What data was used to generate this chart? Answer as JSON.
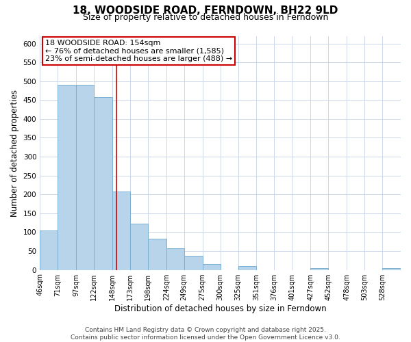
{
  "title": "18, WOODSIDE ROAD, FERNDOWN, BH22 9LD",
  "subtitle": "Size of property relative to detached houses in Ferndown",
  "xlabel": "Distribution of detached houses by size in Ferndown",
  "ylabel": "Number of detached properties",
  "footer_line1": "Contains HM Land Registry data © Crown copyright and database right 2025.",
  "footer_line2": "Contains public sector information licensed under the Open Government Licence v3.0.",
  "annotation_line1": "18 WOODSIDE ROAD: 154sqm",
  "annotation_line2": "← 76% of detached houses are smaller (1,585)",
  "annotation_line3": "23% of semi-detached houses are larger (488) →",
  "bin_edges": [
    46,
    71,
    97,
    122,
    148,
    173,
    198,
    224,
    249,
    275,
    300,
    325,
    351,
    376,
    401,
    427,
    452,
    478,
    503,
    528,
    554
  ],
  "bin_counts": [
    105,
    490,
    490,
    457,
    208,
    122,
    82,
    58,
    37,
    15,
    0,
    10,
    0,
    0,
    0,
    5,
    0,
    0,
    0,
    5
  ],
  "bar_color": "#b8d4ea",
  "bar_edge_color": "#7ab0d4",
  "property_line_x": 154,
  "property_line_color": "#cc0000",
  "annotation_box_edge_color": "#cc0000",
  "ylim": [
    0,
    620
  ],
  "ytick_step": 50,
  "background_color": "#ffffff",
  "grid_color": "#ccd8e8",
  "title_fontsize": 11,
  "subtitle_fontsize": 9,
  "tick_label_fontsize": 7,
  "axis_label_fontsize": 8.5,
  "annotation_fontsize": 8,
  "footer_fontsize": 6.5
}
